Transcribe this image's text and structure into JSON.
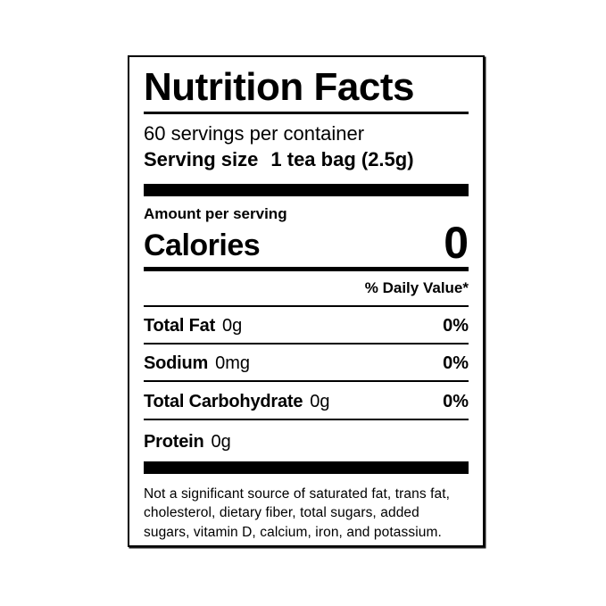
{
  "label": {
    "title": "Nutrition Facts",
    "servings_per_container": "60 servings per container",
    "serving_size_label": "Serving size",
    "serving_size_value": "1 tea bag (2.5g)",
    "amount_per_serving": "Amount per serving",
    "calories_label": "Calories",
    "calories_value": "0",
    "daily_value_header": "% Daily Value*",
    "nutrients": [
      {
        "name": "Total Fat",
        "amount": "0g",
        "dv": "0%"
      },
      {
        "name": "Sodium",
        "amount": "0mg",
        "dv": "0%"
      },
      {
        "name": "Total Carbohydrate",
        "amount": "0g",
        "dv": "0%"
      },
      {
        "name": "Protein",
        "amount": "0g",
        "dv": ""
      }
    ],
    "footnote": "Not a significant source of saturated fat, trans fat, cholesterol, dietary fiber, total sugars, added sugars, vitamin D, calcium, iron, and potassium.",
    "colors": {
      "text": "#000000",
      "background": "#ffffff",
      "rule": "#000000"
    }
  }
}
